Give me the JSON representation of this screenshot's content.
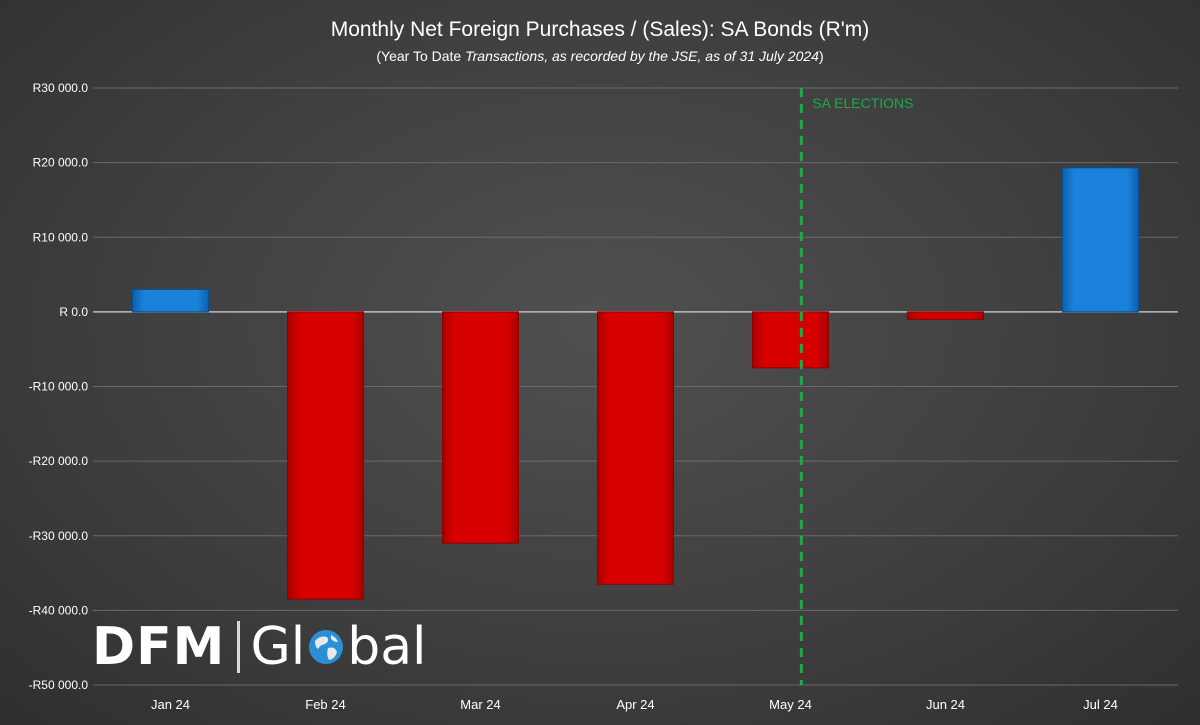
{
  "title": "Monthly Net Foreign Purchases / (Sales): SA Bonds (R'm)",
  "subtitle_prefix": "(Year To Date ",
  "subtitle_italic": "Transactions, as recorded by the JSE, as of 31 July 2024",
  "subtitle_suffix": ")",
  "logo": {
    "left": "DFM",
    "right_a": "Gl",
    "right_b": "bal"
  },
  "colors": {
    "positive": "#1b7fd6",
    "negative": "#d40000",
    "annotation": "#1ea84a",
    "grid": "#6a6a6a",
    "zero_line": "#bdbdbd"
  },
  "chart_data": {
    "type": "bar",
    "categories": [
      "Jan 24",
      "Feb 24",
      "Mar 24",
      "Apr 24",
      "May 24",
      "Jun 24",
      "Jul 24"
    ],
    "values": [
      3000,
      -38500,
      -31000,
      -36500,
      -7500,
      -1000,
      19300
    ],
    "ylim": [
      -50000,
      30000
    ],
    "yticks": [
      {
        "value": 30000,
        "label": "R30 000.0"
      },
      {
        "value": 20000,
        "label": "R20 000.0"
      },
      {
        "value": 10000,
        "label": "R10 000.0"
      },
      {
        "value": 0,
        "label": "R 0.0"
      },
      {
        "value": -10000,
        "label": "-R10 000.0"
      },
      {
        "value": -20000,
        "label": "-R20 000.0"
      },
      {
        "value": -30000,
        "label": "-R30 000.0"
      },
      {
        "value": -40000,
        "label": "-R40 000.0"
      },
      {
        "value": -50000,
        "label": "-R50 000.0"
      }
    ],
    "grid": true,
    "annotation": {
      "label": "SA ELECTIONS",
      "between": [
        "May 24",
        "Jun 24"
      ]
    }
  }
}
